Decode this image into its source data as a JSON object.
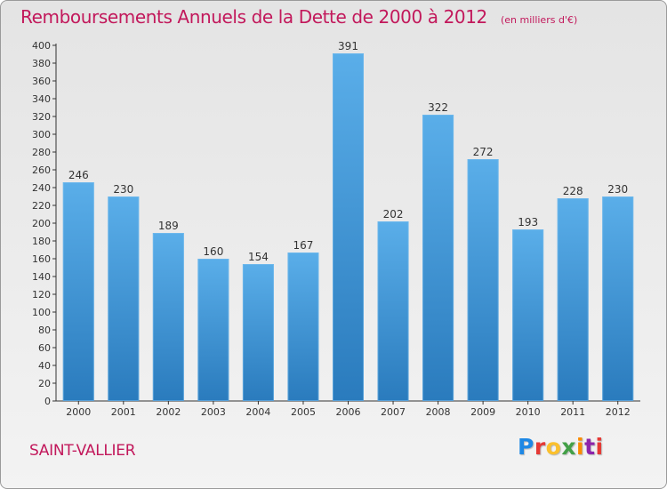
{
  "title": "Remboursements Annuels de la Dette de 2000 à 2012",
  "subtitle": "(en milliers d'€)",
  "place": "SAINT-VALLIER",
  "logo": "Proxiti",
  "colors": {
    "title": "#c2185b",
    "bar_top": "#5aaee9",
    "bar_bottom": "#2a7bbd",
    "axis": "#333333",
    "grid": "#c8c8c8"
  },
  "chart_data": {
    "type": "bar",
    "title": "Remboursements Annuels de la Dette de 2000 à 2012",
    "subtitle": "(en milliers d'€)",
    "categories": [
      "2000",
      "2001",
      "2002",
      "2003",
      "2004",
      "2005",
      "2006",
      "2007",
      "2008",
      "2009",
      "2010",
      "2011",
      "2012"
    ],
    "values": [
      246,
      230,
      189,
      160,
      154,
      167,
      391,
      202,
      322,
      272,
      193,
      228,
      230
    ],
    "ylim": [
      0,
      400
    ],
    "ytick_step": 20,
    "grid": false,
    "data_labels": true,
    "legend": "none"
  }
}
